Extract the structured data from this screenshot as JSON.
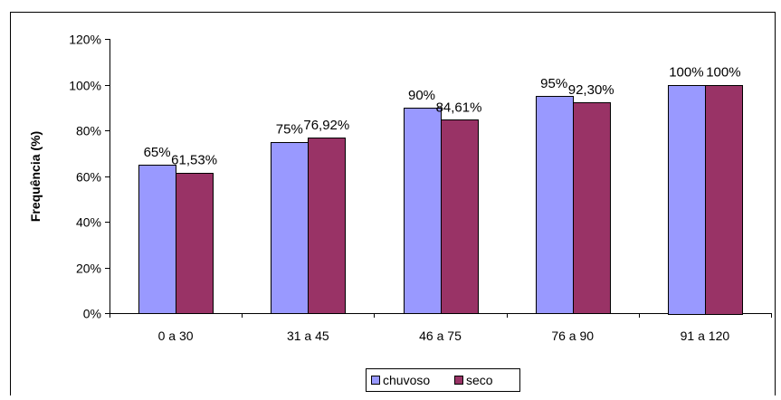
{
  "chart_data": {
    "type": "bar",
    "title": "",
    "xlabel": "",
    "ylabel": "Frequência (%)",
    "ylim": [
      0,
      120
    ],
    "yticks": [
      0,
      20,
      40,
      60,
      80,
      100,
      120
    ],
    "ytick_labels": [
      "0%",
      "20%",
      "40%",
      "60%",
      "80%",
      "100%",
      "120%"
    ],
    "categories": [
      "0 a 30",
      "31 a 45",
      "46 a 75",
      "76 a 90",
      "91 a 120"
    ],
    "series": [
      {
        "name": "chuvoso",
        "color": "#9999FF",
        "values": [
          65,
          75,
          90,
          95,
          100
        ],
        "labels": [
          "65%",
          "75%",
          "90%",
          "95%",
          "100%"
        ]
      },
      {
        "name": "seco",
        "color": "#993366",
        "values": [
          61.53,
          76.92,
          84.61,
          92.3,
          100
        ],
        "labels": [
          "61,53%",
          "76,92%",
          "84,61%",
          "92,30%",
          "100%"
        ]
      }
    ],
    "legend": {
      "position": "bottom"
    },
    "grid": false
  }
}
